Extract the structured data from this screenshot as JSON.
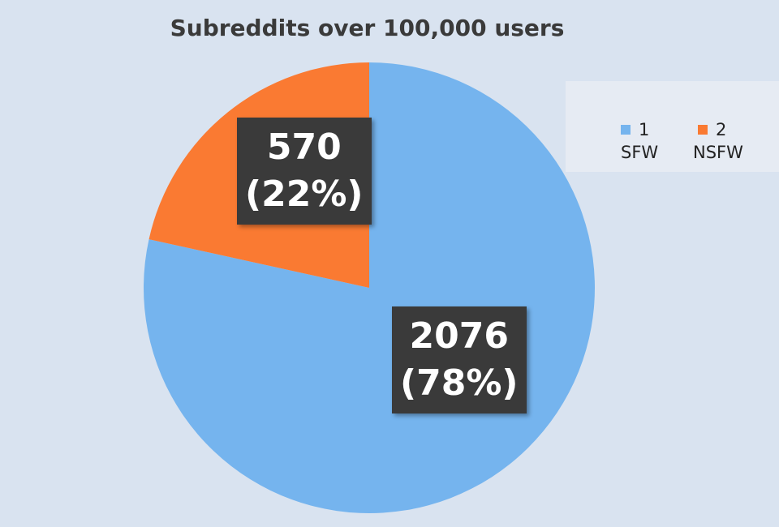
{
  "chart_data": {
    "type": "pie",
    "title": "Subreddits over 100,000 users",
    "categories": [
      "1",
      "2"
    ],
    "series_labels": [
      "SFW",
      "NSFW"
    ],
    "values": [
      2076,
      570
    ],
    "percent_labels": [
      "(78%)",
      "(22%)"
    ],
    "colors": [
      "#75b4ee",
      "#fa7a32"
    ],
    "legend_position": "top-right"
  }
}
